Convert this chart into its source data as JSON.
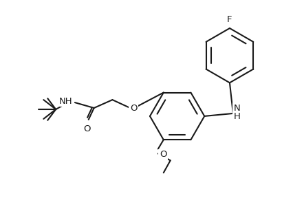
{
  "background_color": "#ffffff",
  "line_color": "#1a1a1a",
  "bond_lw": 1.5,
  "font_size": 9.5,
  "fig_w": 4.26,
  "fig_h": 3.17,
  "dpi": 100,
  "label_F": "F",
  "label_O1": "O",
  "label_O2": "O",
  "label_O3": "O",
  "label_NH_amide": "NH",
  "label_N": "N",
  "label_H": "H"
}
